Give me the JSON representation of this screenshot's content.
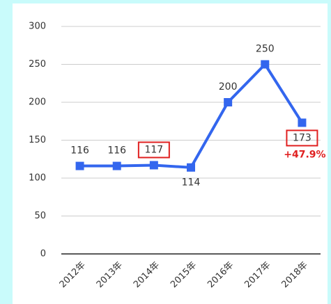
{
  "chart_data": {
    "type": "line",
    "categories": [
      "2012年",
      "2013年",
      "2014年",
      "2015年",
      "2016年",
      "2017年",
      "2018年"
    ],
    "series": [
      {
        "name": "value",
        "color": "#3366ee",
        "values": [
          116,
          116,
          117,
          114,
          200,
          250,
          173
        ]
      }
    ],
    "ylim": [
      0,
      300
    ],
    "yticks": [
      0,
      50,
      100,
      150,
      200,
      250,
      300
    ],
    "grid": true,
    "highlighted_points": [
      2,
      6
    ],
    "highlight_color": "#e02020",
    "annotation": "+47.9%"
  }
}
